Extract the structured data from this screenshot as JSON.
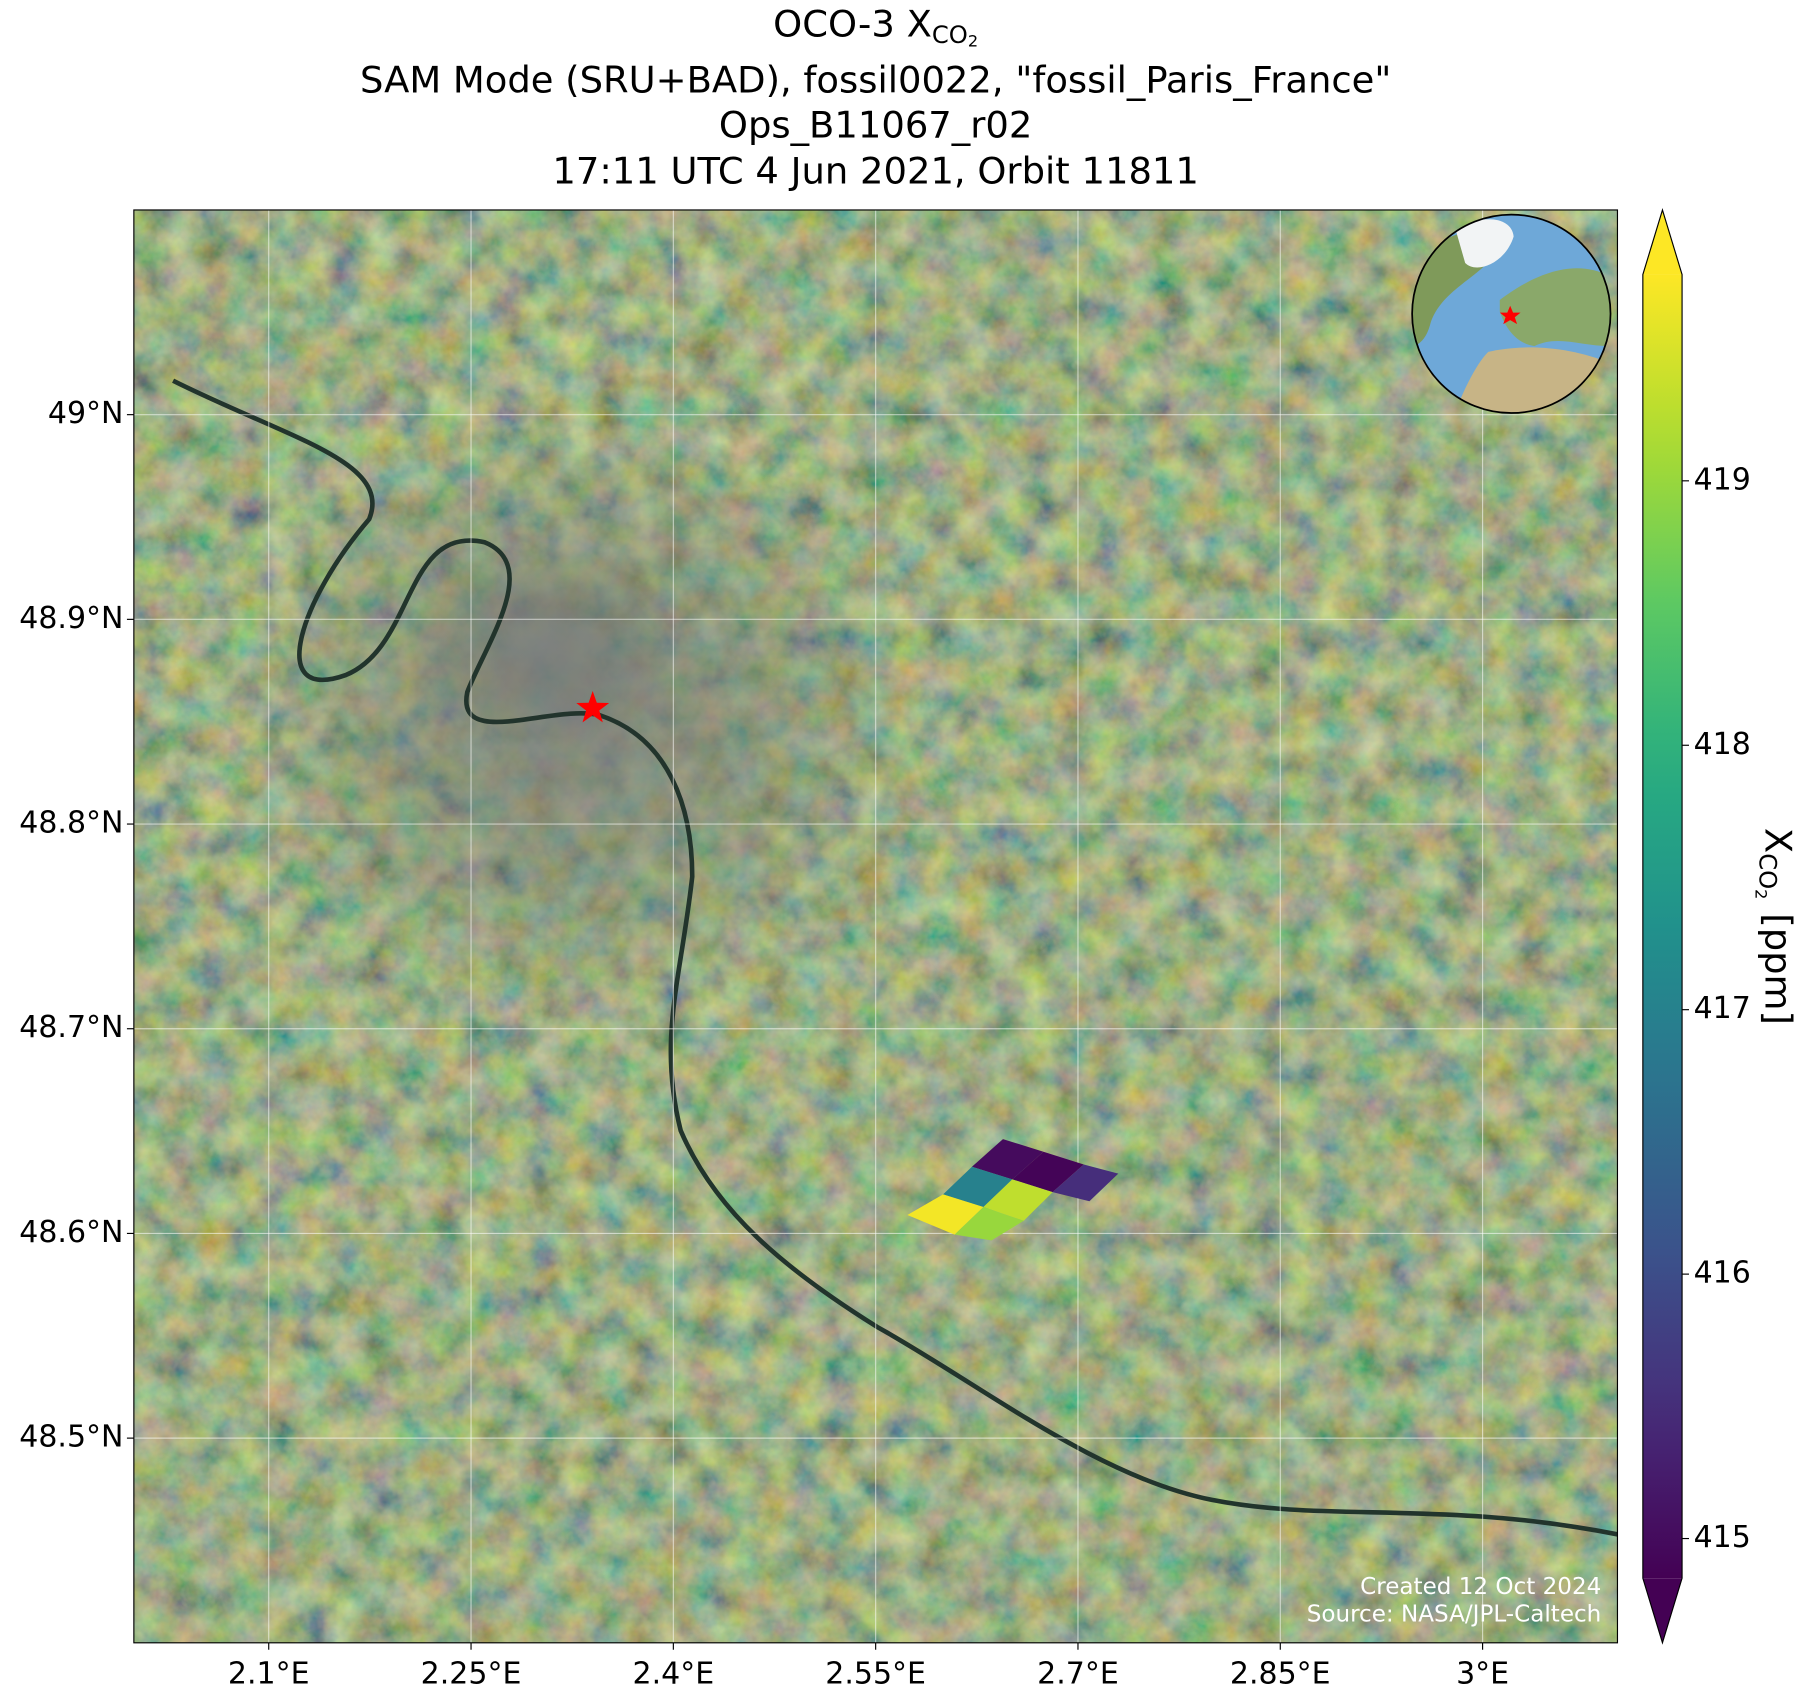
{
  "chart_data": {
    "type": "map",
    "title": {
      "text": "OCO-3 X",
      "subscript": "CO",
      "subscript2": "2"
    },
    "subtitle": [
      "SAM Mode (SRU+BAD), fossil0022, \"fossil_Paris_France\"",
      "Ops_B11067_r02",
      "17:11 UTC 4 Jun 2021, Orbit 11811"
    ],
    "xlim": [
      2.0,
      3.1
    ],
    "ylim": [
      48.4,
      49.1
    ],
    "xticks": [
      {
        "value": 2.1,
        "label": "2.1°E"
      },
      {
        "value": 2.25,
        "label": "2.25°E"
      },
      {
        "value": 2.4,
        "label": "2.4°E"
      },
      {
        "value": 2.55,
        "label": "2.55°E"
      },
      {
        "value": 2.7,
        "label": "2.7°E"
      },
      {
        "value": 2.85,
        "label": "2.85°E"
      },
      {
        "value": 3.0,
        "label": "3°E"
      }
    ],
    "yticks": [
      {
        "value": 48.5,
        "label": "48.5°N"
      },
      {
        "value": 48.6,
        "label": "48.6°N"
      },
      {
        "value": 48.7,
        "label": "48.7°N"
      },
      {
        "value": 48.8,
        "label": "48.8°N"
      },
      {
        "value": 48.9,
        "label": "48.9°N"
      },
      {
        "value": 49.0,
        "label": "49°N"
      }
    ],
    "grid": true,
    "colormap": "viridis",
    "clim": [
      414.85,
      419.78
    ],
    "colorbar": {
      "ticks": [
        415,
        416,
        417,
        418,
        419
      ],
      "extend": "both",
      "label": {
        "symbol": "X",
        "subscript": "CO",
        "subscript2": "2",
        "unit": "[ppm]"
      }
    },
    "soundings": [
      {
        "corners": [
          [
            2.6214,
            48.6326
          ],
          [
            2.6444,
            48.6461
          ],
          [
            2.6744,
            48.6399
          ],
          [
            2.6513,
            48.6264
          ]
        ],
        "value": 415.0
      },
      {
        "corners": [
          [
            2.6513,
            48.6264
          ],
          [
            2.6744,
            48.6399
          ],
          [
            2.7043,
            48.6337
          ],
          [
            2.6812,
            48.6202
          ]
        ],
        "value": 414.9
      },
      {
        "corners": [
          [
            2.6812,
            48.6202
          ],
          [
            2.7043,
            48.6337
          ],
          [
            2.7299,
            48.6292
          ],
          [
            2.7085,
            48.6157
          ]
        ],
        "value": 415.5
      },
      {
        "corners": [
          [
            2.6,
            48.6191
          ],
          [
            2.6214,
            48.6326
          ],
          [
            2.6513,
            48.6264
          ],
          [
            2.6299,
            48.6129
          ]
        ],
        "value": 417.0
      },
      {
        "corners": [
          [
            2.6299,
            48.6129
          ],
          [
            2.6513,
            48.6264
          ],
          [
            2.6812,
            48.6202
          ],
          [
            2.6598,
            48.6062
          ]
        ],
        "value": 419.3
      },
      {
        "corners": [
          [
            2.5735,
            48.609
          ],
          [
            2.6,
            48.6191
          ],
          [
            2.6299,
            48.6129
          ],
          [
            2.6085,
            48.5994
          ]
        ],
        "value": 419.7
      },
      {
        "corners": [
          [
            2.6085,
            48.5994
          ],
          [
            2.6299,
            48.6129
          ],
          [
            2.6598,
            48.6062
          ],
          [
            2.6359,
            48.5966
          ]
        ],
        "value": 419.0
      }
    ],
    "marker": {
      "lon": 2.3402,
      "lat": 48.8565,
      "color": "#ff0000"
    },
    "annotations": [
      "Created 12 Oct 2024",
      "Source: NASA/JPL-Caltech"
    ]
  }
}
